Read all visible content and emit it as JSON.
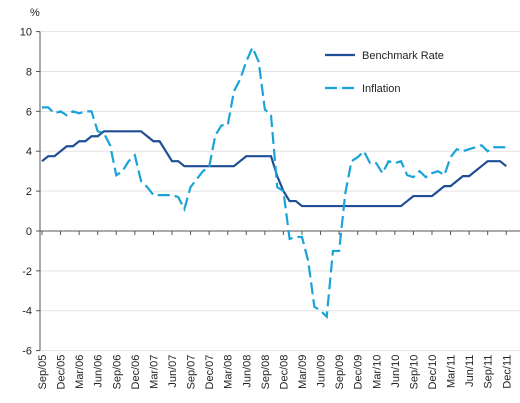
{
  "chart_data": {
    "type": "line",
    "y_unit": "%",
    "categories": [
      "Sep/05",
      null,
      null,
      "Dec/05",
      null,
      null,
      "Mar/06",
      null,
      null,
      "Jun/06",
      null,
      null,
      "Sep/06",
      null,
      null,
      "Dec/06",
      null,
      null,
      "Mar/07",
      null,
      null,
      "Jun/07",
      null,
      null,
      "Sep/07",
      null,
      null,
      "Dec/07",
      null,
      null,
      "Mar/08",
      null,
      null,
      "Jun/08",
      null,
      null,
      "Sep/08",
      null,
      null,
      "Dec/08",
      null,
      null,
      "Mar/09",
      null,
      null,
      "Jun/09",
      null,
      null,
      "Sep/09",
      null,
      null,
      "Dec/09",
      null,
      null,
      "Mar/10",
      null,
      null,
      "Jun/10",
      null,
      null,
      "Sep/10",
      null,
      null,
      "Dec/10",
      null,
      null,
      "Mar/11",
      null,
      null,
      "Jun/11",
      null,
      null,
      "Sep/11",
      null,
      null,
      "Dec/11"
    ],
    "series": [
      {
        "name": "Benchmark Rate",
        "color": "#1f4e96",
        "dashed": false,
        "values": [
          3.5,
          3.75,
          3.75,
          4.0,
          4.25,
          4.25,
          4.5,
          4.5,
          4.75,
          4.75,
          5.0,
          5.0,
          5.0,
          5.0,
          5.0,
          5.0,
          5.0,
          4.75,
          4.5,
          4.5,
          4.0,
          3.5,
          3.5,
          3.25,
          3.25,
          3.25,
          3.25,
          3.25,
          3.25,
          3.25,
          3.25,
          3.25,
          3.5,
          3.75,
          3.75,
          3.75,
          3.75,
          3.75,
          2.75,
          2.0,
          1.5,
          1.5,
          1.25,
          1.25,
          1.25,
          1.25,
          1.25,
          1.25,
          1.25,
          1.25,
          1.25,
          1.25,
          1.25,
          1.25,
          1.25,
          1.25,
          1.25,
          1.25,
          1.25,
          1.5,
          1.75,
          1.75,
          1.75,
          1.75,
          2.0,
          2.25,
          2.25,
          2.5,
          2.75,
          2.75,
          3.0,
          3.25,
          3.5,
          3.5,
          3.5,
          3.25
        ]
      },
      {
        "name": "Inflation",
        "color": "#1aa3d9",
        "dashed": true,
        "values": [
          6.2,
          6.2,
          5.9,
          6.0,
          5.8,
          6.0,
          5.9,
          6.0,
          6.0,
          5.0,
          4.9,
          4.3,
          2.8,
          3.0,
          3.5,
          3.8,
          2.5,
          2.2,
          1.8,
          1.8,
          1.8,
          1.8,
          1.7,
          1.1,
          2.2,
          2.6,
          3.0,
          3.2,
          4.8,
          5.3,
          5.3,
          7.0,
          7.6,
          8.5,
          9.2,
          8.5,
          6.1,
          5.8,
          2.2,
          2.0,
          -0.4,
          -0.3,
          -0.3,
          -1.5,
          -3.8,
          -4.0,
          -4.3,
          -1.0,
          -1.0,
          1.9,
          3.5,
          3.7,
          4.0,
          3.4,
          3.4,
          2.9,
          3.5,
          3.4,
          3.5,
          2.8,
          2.7,
          3.0,
          2.7,
          2.9,
          3.0,
          2.8,
          3.7,
          4.1,
          4.0,
          4.1,
          4.2,
          4.3,
          4.0,
          4.2,
          4.2,
          4.2
        ]
      }
    ],
    "ylim": [
      -6,
      10
    ],
    "yticks": [
      -6,
      -4,
      -2,
      0,
      2,
      4,
      6,
      8,
      10
    ],
    "grid": true,
    "legend": "upper right"
  }
}
